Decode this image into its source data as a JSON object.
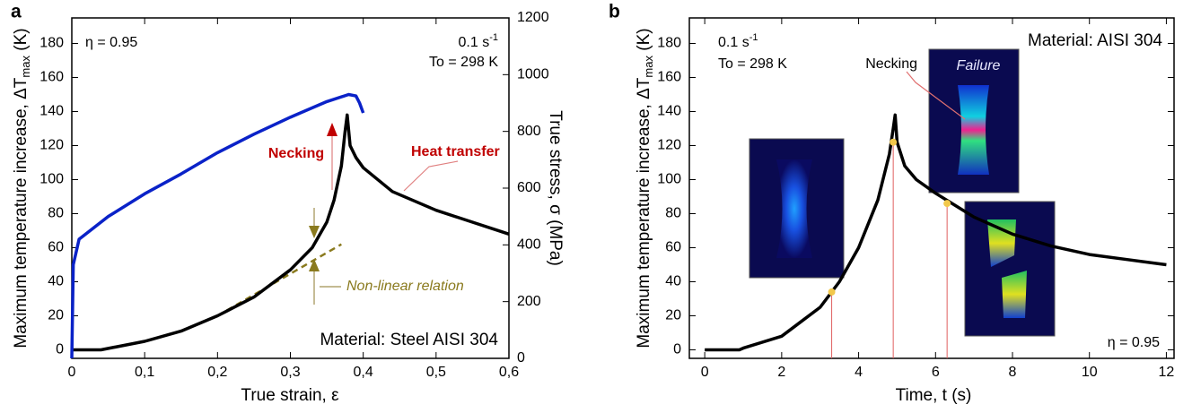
{
  "chart_data": [
    {
      "type": "line",
      "panel_label": "a",
      "xlabel": "True strain, ε",
      "ylabel": "Maximum temperature increase, ΔT",
      "ylabel_sub": "max",
      "ylabel_unit": " (K)",
      "y2label": "True stress, σ (MPa)",
      "xlim": [
        0,
        0.6
      ],
      "xticks": [
        0,
        {
          "value": 0.1,
          "label": "0,1"
        },
        {
          "value": 0.2,
          "label": "0,2"
        },
        {
          "value": 0.3,
          "label": "0,3"
        },
        {
          "value": 0.4,
          "label": "0,4"
        },
        {
          "value": 0.5,
          "label": "0,5"
        },
        {
          "value": 0.6,
          "label": "0,6"
        }
      ],
      "ylim": [
        -5,
        195
      ],
      "yticks": [
        0,
        20,
        40,
        60,
        80,
        100,
        120,
        140,
        160,
        180
      ],
      "y2lim": [
        0,
        1200
      ],
      "y2ticks": [
        0,
        200,
        400,
        600,
        800,
        1000,
        1200
      ],
      "series": [
        {
          "name": "Maximum temperature increase",
          "color": "#000000",
          "x": [
            0,
            0.04,
            0.1,
            0.15,
            0.2,
            0.25,
            0.3,
            0.33,
            0.35,
            0.36,
            0.37,
            0.375,
            0.378,
            0.382,
            0.39,
            0.4,
            0.44,
            0.5,
            0.55,
            0.6
          ],
          "values": [
            0,
            0,
            5,
            11,
            20,
            31,
            47,
            60,
            75,
            88,
            108,
            128,
            138,
            120,
            113,
            107,
            93,
            82,
            75,
            68
          ]
        },
        {
          "name": "True stress",
          "color": "#0a22c8",
          "axis": "y2",
          "x": [
            0,
            0.002,
            0.01,
            0.05,
            0.1,
            0.15,
            0.2,
            0.25,
            0.3,
            0.35,
            0.38,
            0.39,
            0.395,
            0.4
          ],
          "values": [
            0,
            330,
            420,
            500,
            580,
            650,
            725,
            790,
            850,
            905,
            930,
            925,
            900,
            865
          ]
        }
      ],
      "dashed_line": {
        "color": "#8a7a1e",
        "x": [
          0.2,
          0.37
        ],
        "values": [
          20,
          62
        ]
      },
      "annotations": {
        "eta": "η = 0.95",
        "rate": "0.1 s",
        "rate_sup": "-1",
        "to": "To = 298 K",
        "material": "Material: Steel AISI 304",
        "necking": "Necking",
        "heat": "Heat transfer",
        "nonlinear": "Non-linear relation"
      }
    },
    {
      "type": "line",
      "panel_label": "b",
      "xlabel": "Time, t (s)",
      "ylabel": "Maximum temperature increase, ΔT",
      "ylabel_sub": "max",
      "ylabel_unit": " (K)",
      "xlim": [
        -0.4,
        12.2
      ],
      "xticks": [
        0,
        2,
        4,
        6,
        8,
        10,
        12
      ],
      "ylim": [
        -5,
        195
      ],
      "yticks": [
        0,
        20,
        40,
        60,
        80,
        100,
        120,
        140,
        160,
        180
      ],
      "series": [
        {
          "name": "Maximum temperature increase",
          "color": "#000000",
          "x": [
            0,
            0.9,
            1,
            2,
            3,
            3.5,
            4,
            4.5,
            4.8,
            4.9,
            4.95,
            5,
            5.2,
            5.5,
            6,
            6.5,
            7,
            8,
            9,
            10,
            11,
            12
          ],
          "values": [
            0,
            0,
            1,
            8,
            25,
            40,
            60,
            88,
            115,
            130,
            138,
            122,
            108,
            100,
            92,
            85,
            78,
            68,
            61,
            56,
            53,
            50
          ]
        }
      ],
      "markers": {
        "color": "#f2c84b",
        "x": [
          3.3,
          4.9,
          6.3
        ],
        "values": [
          34,
          122,
          86
        ]
      },
      "annotations": {
        "rate": "0.1 s",
        "rate_sup": "-1",
        "to": "To = 298 K",
        "material": "Material: AISI 304",
        "necking": "Necking",
        "failure": "Failure",
        "eta": "η = 0.95"
      }
    }
  ]
}
